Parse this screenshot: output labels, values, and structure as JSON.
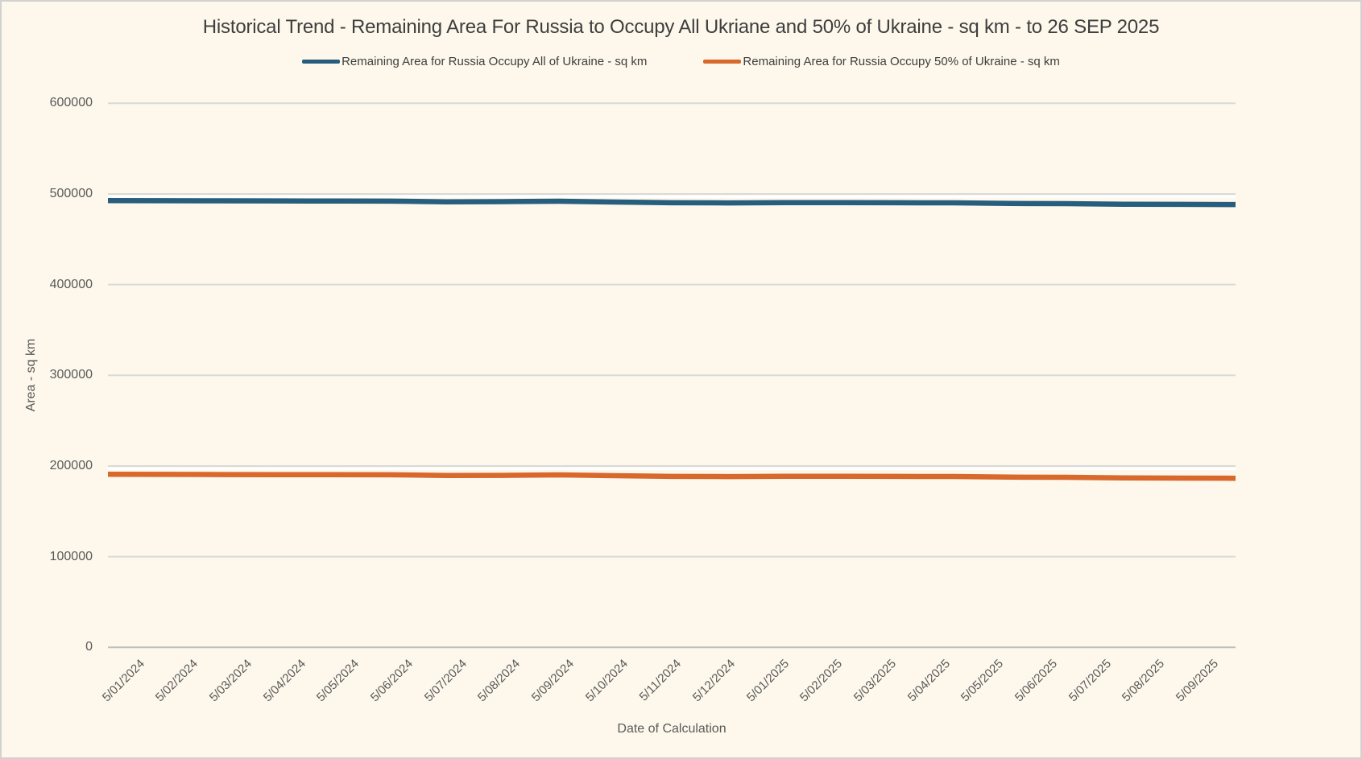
{
  "chart": {
    "title": "Historical Trend - Remaining Area For Russia to Occupy All Ukriane and 50% of Ukraine - sq km - to 26 SEP 2025",
    "x_axis_title": "Date of Calculation",
    "y_axis_title": "Area - sq km"
  },
  "legend": {
    "items": [
      {
        "label": "Remaining Area for Russia Occupy All of Ukraine - sq km",
        "color": "#275E7D"
      },
      {
        "label": "Remaining Area for Russia Occupy 50% of Ukraine - sq km",
        "color": "#D8682C"
      }
    ]
  },
  "colors": {
    "background": "#FDF8EB",
    "canvas_border": "#D3D1D1",
    "gridline": "#D9D9D9",
    "gridline_highlight": "#FFFFFF",
    "axis_line": "#BFBFBF",
    "title_text": "#3E3E3E",
    "tick_text": "#595959",
    "series_all_ukraine": "#275E7D",
    "series_50pct": "#D8682C"
  },
  "chart_data": {
    "type": "line",
    "title": "Historical Trend - Remaining Area For Russia to Occupy All Ukriane and 50% of Ukraine - sq km - to 26 SEP 2025",
    "xlabel": "Date of Calculation",
    "ylabel": "Area - sq km",
    "ylim": [
      0,
      600000
    ],
    "yticks": [
      0,
      100000,
      200000,
      300000,
      400000,
      500000,
      600000
    ],
    "grid": "horizontal",
    "legend_position": "top",
    "categories": [
      "5/01/2024",
      "5/02/2024",
      "5/03/2024",
      "5/04/2024",
      "5/05/2024",
      "5/06/2024",
      "5/07/2024",
      "5/08/2024",
      "5/09/2024",
      "5/10/2024",
      "5/11/2024",
      "5/12/2024",
      "5/01/2025",
      "5/02/2025",
      "5/03/2025",
      "5/04/2025",
      "5/05/2025",
      "5/06/2025",
      "5/07/2025",
      "5/08/2025",
      "5/09/2025"
    ],
    "series": [
      {
        "name": "Remaining Area for Russia Occupy All of Ukraine - sq km",
        "color": "#275E7D",
        "values": [
          492600,
          492500,
          492400,
          492300,
          492200,
          492100,
          491400,
          491500,
          492000,
          491100,
          490300,
          490100,
          490500,
          490400,
          490300,
          490200,
          489500,
          489300,
          488600,
          488500,
          488300
        ]
      },
      {
        "name": "Remaining Area for Russia Occupy 50% of Ukraine - sq km",
        "color": "#D8682C",
        "values": [
          190800,
          190700,
          190600,
          190500,
          190400,
          190300,
          189600,
          189700,
          190200,
          189300,
          188500,
          188300,
          188700,
          188600,
          188500,
          188400,
          187700,
          187500,
          186800,
          186700,
          186500
        ]
      }
    ]
  }
}
